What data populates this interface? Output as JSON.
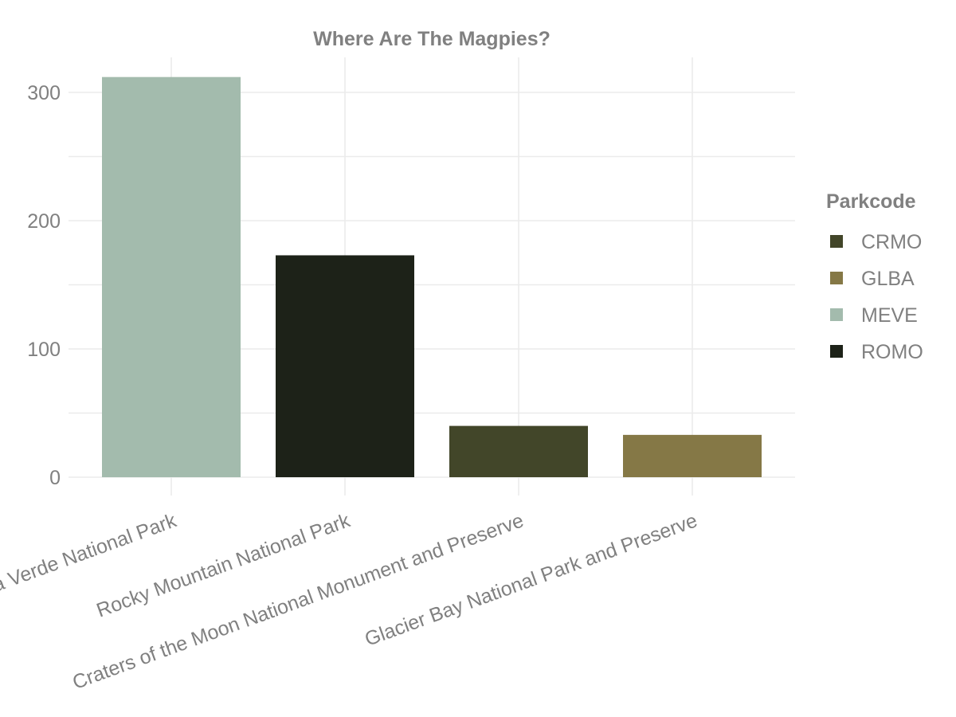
{
  "chart_data": {
    "type": "bar",
    "title": "Where Are The Magpies?",
    "xlabel": "",
    "ylabel": "",
    "categories": [
      "Mesa Verde National Park",
      "Rocky Mountain National Park",
      "Craters of the Moon National Monument and Preserve",
      "Glacier Bay National Park and Preserve"
    ],
    "values": [
      312,
      173,
      40,
      33
    ],
    "bar_parkcodes": [
      "MEVE",
      "ROMO",
      "CRMO",
      "GLBA"
    ],
    "ylim": [
      0,
      330
    ],
    "yticks": [
      0,
      100,
      200,
      300
    ],
    "grid": true,
    "legend": {
      "title": "Parkcode",
      "placement": "right",
      "entries": [
        {
          "label": "CRMO",
          "color": "#424629"
        },
        {
          "label": "GLBA",
          "color": "#857846"
        },
        {
          "label": "MEVE",
          "color": "#a3bbad"
        },
        {
          "label": "ROMO",
          "color": "#1d2218"
        }
      ]
    }
  }
}
